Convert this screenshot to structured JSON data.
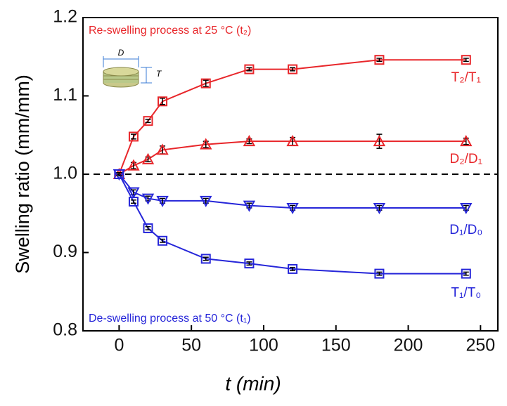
{
  "chart_data": {
    "type": "line",
    "xlabel": "t (min)",
    "ylabel": "Swelling ratio (mm/mm)",
    "x": [
      0,
      10,
      20,
      30,
      60,
      90,
      120,
      180,
      240
    ],
    "xlim": [
      -25,
      262
    ],
    "xticks": [
      0,
      50,
      100,
      150,
      200,
      250
    ],
    "ylim": [
      0.8,
      1.2
    ],
    "yticks": [
      0.8,
      0.9,
      {
        "value": 1.0,
        "label": "1.0"
      },
      1.1,
      1.2
    ],
    "reference_line": 1.0,
    "annotations": [
      "Re-swelling process at 25 °C (t₂)",
      "De-swelling process at 50 °C (t₁)"
    ],
    "inset_labels": [
      "D",
      "T"
    ],
    "series": [
      {
        "name": "T₂/T₁",
        "color": "#e8262a",
        "marker": "square",
        "values": [
          1.0,
          1.048,
          1.068,
          1.093,
          1.116,
          1.134,
          1.134,
          1.146,
          1.146
        ],
        "errors": [
          0.002,
          0.003,
          0.002,
          0.004,
          0.004,
          0.002,
          0.002,
          0.002,
          0.002
        ]
      },
      {
        "name": "D₂/D₁",
        "color": "#e8262a",
        "marker": "triangle-up",
        "values": [
          1.0,
          1.011,
          1.019,
          1.031,
          1.038,
          1.042,
          1.042,
          1.042,
          1.042
        ],
        "errors": [
          0.002,
          0.004,
          0.003,
          0.005,
          0.004,
          0.003,
          0.005,
          0.009,
          0.004
        ]
      },
      {
        "name": "D₁/D₀",
        "color": "#2626d9",
        "marker": "triangle-down",
        "values": [
          1.0,
          0.977,
          0.969,
          0.966,
          0.966,
          0.96,
          0.957,
          0.957,
          0.957
        ],
        "errors": [
          0.002,
          0.003,
          0.003,
          0.003,
          0.003,
          0.003,
          0.003,
          0.003,
          0.003
        ]
      },
      {
        "name": "T₁/T₀",
        "color": "#2626d9",
        "marker": "square",
        "values": [
          1.0,
          0.965,
          0.931,
          0.915,
          0.892,
          0.886,
          0.879,
          0.873,
          0.873
        ],
        "errors": [
          0.002,
          0.002,
          0.002,
          0.002,
          0.002,
          0.002,
          0.002,
          0.002,
          0.002
        ]
      }
    ]
  }
}
